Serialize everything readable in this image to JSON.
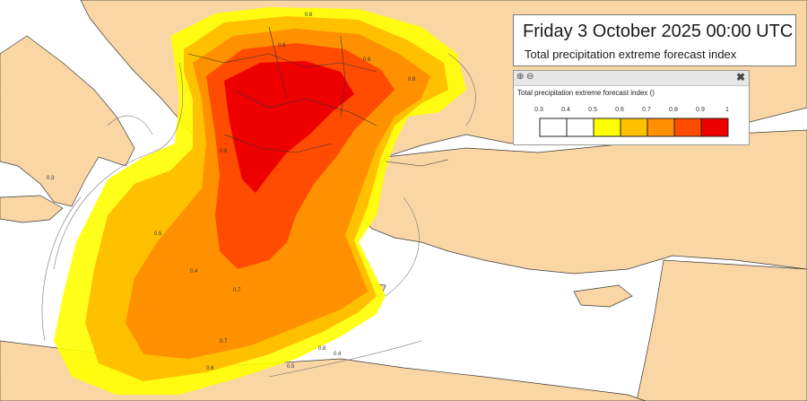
{
  "title": {
    "main": "Friday 3 October 2025 00:00 UTC",
    "subtitle": "Total precipitation extreme forecast index"
  },
  "legend": {
    "title": "Total precipitation extreme forecast index ()",
    "tick_labels": [
      "0.3",
      "0.4",
      "0.5",
      "0.6",
      "0.7",
      "0.8",
      "0.9",
      "1"
    ],
    "classes": [
      {
        "from": 0.3,
        "to": 0.4,
        "color": "#ffffff"
      },
      {
        "from": 0.4,
        "to": 0.5,
        "color": "#ffffff"
      },
      {
        "from": 0.5,
        "to": 0.6,
        "color": "#ffff00"
      },
      {
        "from": 0.6,
        "to": 0.7,
        "color": "#ffc000"
      },
      {
        "from": 0.7,
        "to": 0.8,
        "color": "#ff9000"
      },
      {
        "from": 0.8,
        "to": 0.9,
        "color": "#ff4c00"
      },
      {
        "from": 0.9,
        "to": 1.0,
        "color": "#ee0000"
      }
    ],
    "tools": {
      "zoom_in_icon": "zoom-in-icon",
      "zoom_out_icon": "zoom-out-icon",
      "close_icon": "close-icon"
    }
  },
  "map": {
    "land_color": "#fad6a5",
    "sea_color": "#ffffff",
    "contour_labels": [
      "0.6",
      "0.6",
      "0.6",
      "0.8",
      "0.6",
      "0.3",
      "0.5",
      "0.4",
      "0.7",
      "0.7",
      "0.8",
      "0.6",
      "0.5",
      "0.4"
    ]
  }
}
